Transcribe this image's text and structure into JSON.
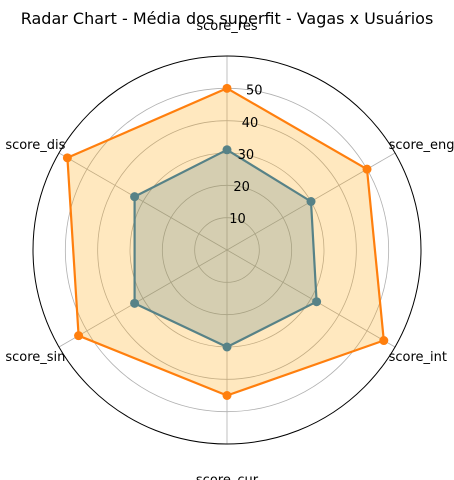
{
  "chart_data": {
    "type": "radar",
    "title": "Radar Chart - Média dos superfit - Vagas x Usuários",
    "categories": [
      "score_res",
      "score_eng",
      "score_int",
      "score_cur",
      "score_sin",
      "score_dis"
    ],
    "radial_ticks": [
      10,
      20,
      30,
      40,
      50
    ],
    "rlim": [
      0,
      60
    ],
    "grid": true,
    "series": [
      {
        "values": [
          31,
          30,
          32,
          30,
          33,
          33
        ],
        "color": "#1f77b4",
        "fill": "#1f77b4",
        "fill_opacity": 0.25
      },
      {
        "values": [
          50,
          50,
          56,
          45,
          53,
          57
        ],
        "color": "#ff7f0e",
        "fill": "#ffa500",
        "fill_opacity": 0.25
      }
    ]
  }
}
